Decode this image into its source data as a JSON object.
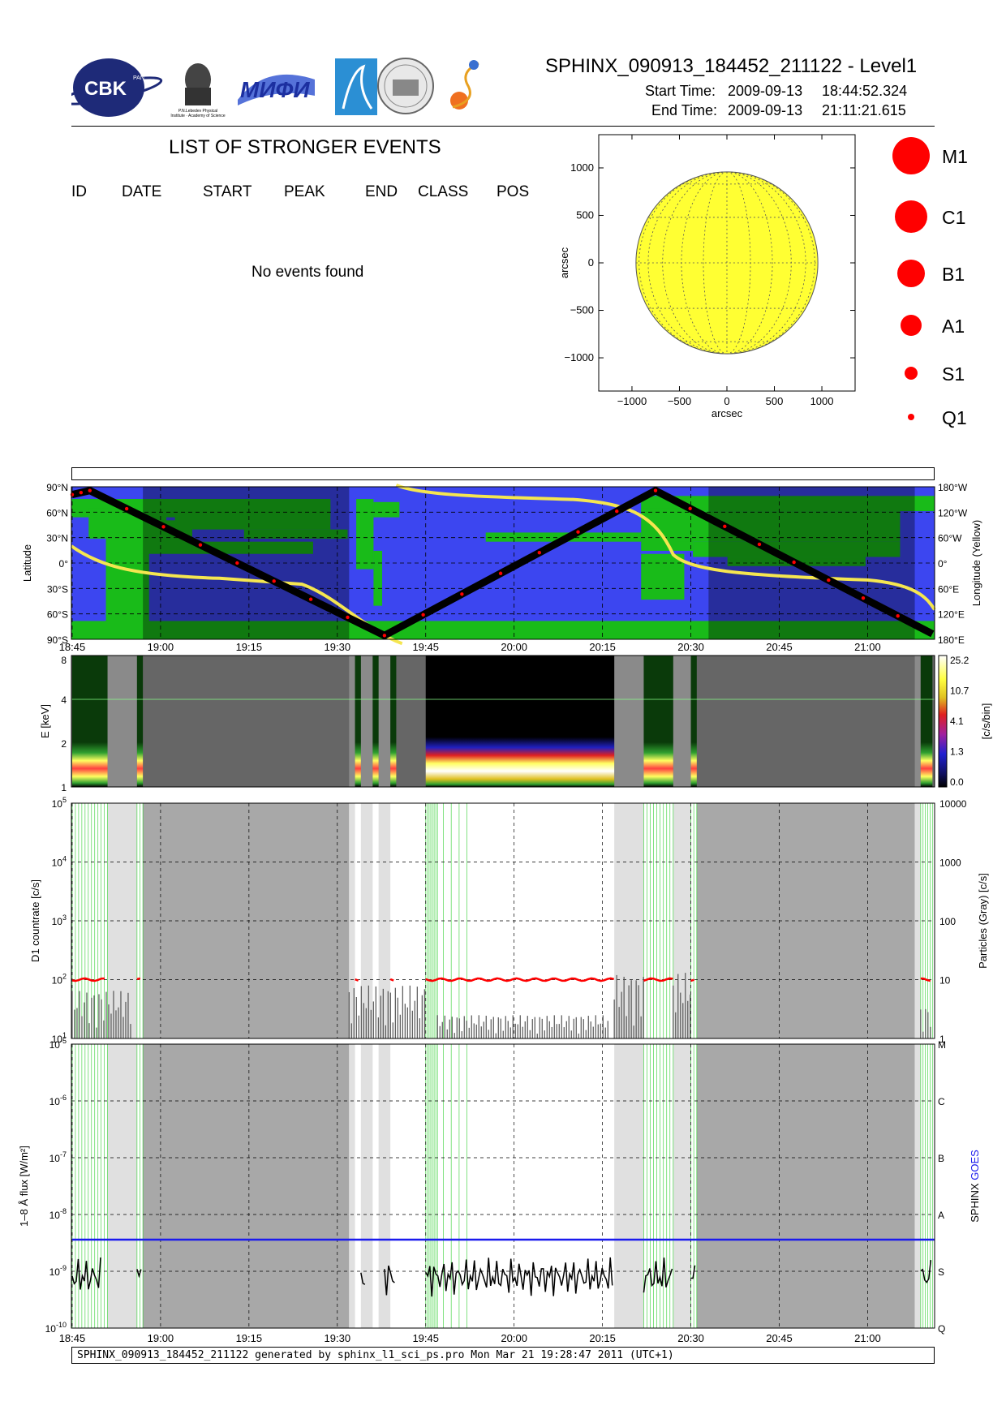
{
  "header": {
    "title": "SPHINX_090913_184452_211122 - Level1",
    "start_label": "Start Time:",
    "start_date": "2009-09-13",
    "start_time": "18:44:52.324",
    "end_label": "End Time:",
    "end_date": "2009-09-13",
    "end_time": "21:11:21.615",
    "logos": [
      {
        "name": "cbk-logo",
        "text": "CBK",
        "sub": "PAN"
      },
      {
        "name": "lebedev-institute-logo",
        "text": "P.N.Lebedev Physical Institute of the Russian Academy of Science"
      },
      {
        "name": "mifi-logo",
        "text": "МИФИ"
      },
      {
        "name": "space-agency-logo",
        "text": ""
      },
      {
        "name": "seal-logo",
        "text": ""
      },
      {
        "name": "swirl-logo",
        "text": ""
      }
    ]
  },
  "events": {
    "title": "LIST OF STRONGER EVENTS",
    "columns": [
      "ID",
      "DATE",
      "START",
      "PEAK",
      "END",
      "CLASS",
      "POS"
    ],
    "empty_message": "No events found"
  },
  "footer": {
    "text": "SPHINX_090913_184452_211122 generated by sphinx_l1_sci_ps.pro Mon Mar 21 19:28:47 2011 (UTC+1)"
  },
  "colors": {
    "sun": "#ffff33",
    "event": "#ff0000",
    "ocean": "#3c46f0",
    "land": "#19bb19",
    "track": "#000000",
    "longitude": "#f5e650",
    "goes": "#1a1aee",
    "night_shade": "#9a9a9a",
    "gap_light": "#e0e0e0",
    "gap_dark": "#a8a8a8",
    "green_lines": "#22cc22"
  },
  "chart_data": [
    {
      "type": "scatter",
      "name": "solar-disk-map",
      "xlabel": "arcsec",
      "ylabel": "arcsec",
      "xlim": [
        -1350,
        1350
      ],
      "ylim": [
        -1350,
        1350
      ],
      "xticks": [
        -1000,
        -500,
        0,
        500,
        1000
      ],
      "yticks": [
        1000,
        500,
        0,
        -500,
        -1000
      ],
      "x_tick_labels": [
        "−1000",
        "−500",
        "0",
        "500",
        "1000"
      ],
      "y_tick_labels": [
        "1000",
        "500",
        "0",
        "−500",
        "−1000"
      ],
      "solar_radius": 958,
      "points": [],
      "legend": [
        {
          "label": "M1",
          "size": 6
        },
        {
          "label": "C1",
          "size": 5
        },
        {
          "label": "B1",
          "size": 4
        },
        {
          "label": "A1",
          "size": 3
        },
        {
          "label": "S1",
          "size": 2
        },
        {
          "label": "Q1",
          "size": 1
        }
      ]
    },
    {
      "type": "line",
      "name": "orbit-track",
      "ylabel": "Latitude",
      "ylabel_right": "Longitude (Yellow)",
      "xlim": [
        "18:44:52",
        "21:11:22"
      ],
      "ylim": [
        -90,
        90
      ],
      "y_tick_labels": [
        "90°N",
        "60°N",
        "30°N",
        "0°",
        "30°S",
        "60°S",
        "90°S"
      ],
      "y_tick_values": [
        90,
        60,
        30,
        0,
        -30,
        -60,
        -90
      ],
      "y2_tick_labels": [
        "180°W",
        "120°W",
        "60°W",
        "0°",
        "60°E",
        "120°E",
        "180°E"
      ],
      "x_tick_labels": [
        "18:45",
        "19:00",
        "19:15",
        "19:30",
        "19:45",
        "20:00",
        "20:15",
        "20:30",
        "20:45",
        "21:00"
      ],
      "latitude_track": {
        "x": [
          "18:45",
          "18:48",
          "19:38",
          "20:24",
          "21:11"
        ],
        "y": [
          85,
          90,
          -90,
          90,
          -88
        ]
      },
      "shaded_intervals": [
        [
          "18:57",
          "19:32"
        ],
        [
          "20:33",
          "21:08"
        ]
      ]
    },
    {
      "type": "heatmap",
      "name": "energy-spectrogram",
      "ylabel": "E [keV]",
      "ylim": [
        1,
        8
      ],
      "y_tick_labels": [
        "8",
        "4",
        "2",
        "1"
      ],
      "colorbar_label": "[c/s/bin]",
      "colorbar_tick_labels": [
        "25.2",
        "10.7",
        "4.1",
        "1.3",
        "0.0"
      ],
      "data_intervals": [
        [
          "18:45",
          "18:51"
        ],
        [
          "18:56",
          "18:57"
        ],
        [
          "19:33",
          "19:34"
        ],
        [
          "19:36",
          "19:37"
        ],
        [
          "19:39",
          "19:40"
        ],
        [
          "19:45",
          "20:17"
        ],
        [
          "20:22",
          "20:27"
        ],
        [
          "20:30",
          "20:31"
        ],
        [
          "21:09",
          "21:11"
        ]
      ]
    },
    {
      "type": "line",
      "name": "d1-countrate",
      "ylabel": "D1 countrate [c/s]",
      "ylabel_right": "Particles (Gray) [c/s]",
      "yscale": "log",
      "ylim": [
        10,
        100000
      ],
      "y_tick_labels": [
        "10^5",
        "10^4",
        "10^3",
        "10^2",
        "10^1"
      ],
      "y2_tick_labels": [
        "10000",
        "1000",
        "100",
        "10",
        "1"
      ],
      "series": [
        {
          "name": "",
          "color": "#ff0000",
          "x": [
            "18:45",
            "18:51",
            "18:57",
            "19:33",
            "19:41",
            "19:45",
            "20:00",
            "20:17",
            "20:22",
            "20:27",
            "20:30",
            "21:11"
          ],
          "values": [
            100,
            100,
            100,
            100,
            100,
            100,
            100,
            100,
            100,
            100,
            100,
            100
          ]
        }
      ]
    },
    {
      "type": "line",
      "name": "goes-flux",
      "ylabel": "1–8 Å flux [W/m²]",
      "ylabel_right_parts": [
        "SPHINX",
        "GOES"
      ],
      "yscale": "log",
      "ylim": [
        1e-10,
        1e-05
      ],
      "y_tick_labels": [
        "10^-5",
        "10^-6",
        "10^-7",
        "10^-8",
        "10^-9",
        "10^-10"
      ],
      "class_labels": [
        "M",
        "C",
        "B",
        "A",
        "S",
        "Q"
      ],
      "x_tick_labels": [
        "18:45",
        "19:00",
        "19:15",
        "19:30",
        "19:45",
        "20:00",
        "20:15",
        "20:30",
        "20:45",
        "21:00"
      ],
      "series": [
        {
          "name": "SPHINX",
          "color": "#000000",
          "x": [
            "18:45",
            "18:51",
            "19:45",
            "20:00",
            "20:17"
          ],
          "values": [
            8e-10,
            7e-10,
            8e-10,
            6e-10,
            7e-10
          ]
        },
        {
          "name": "GOES",
          "color": "#1a1aee",
          "x": [
            "18:45",
            "21:11"
          ],
          "values": [
            3.6e-09,
            3.6e-09
          ]
        }
      ]
    }
  ]
}
